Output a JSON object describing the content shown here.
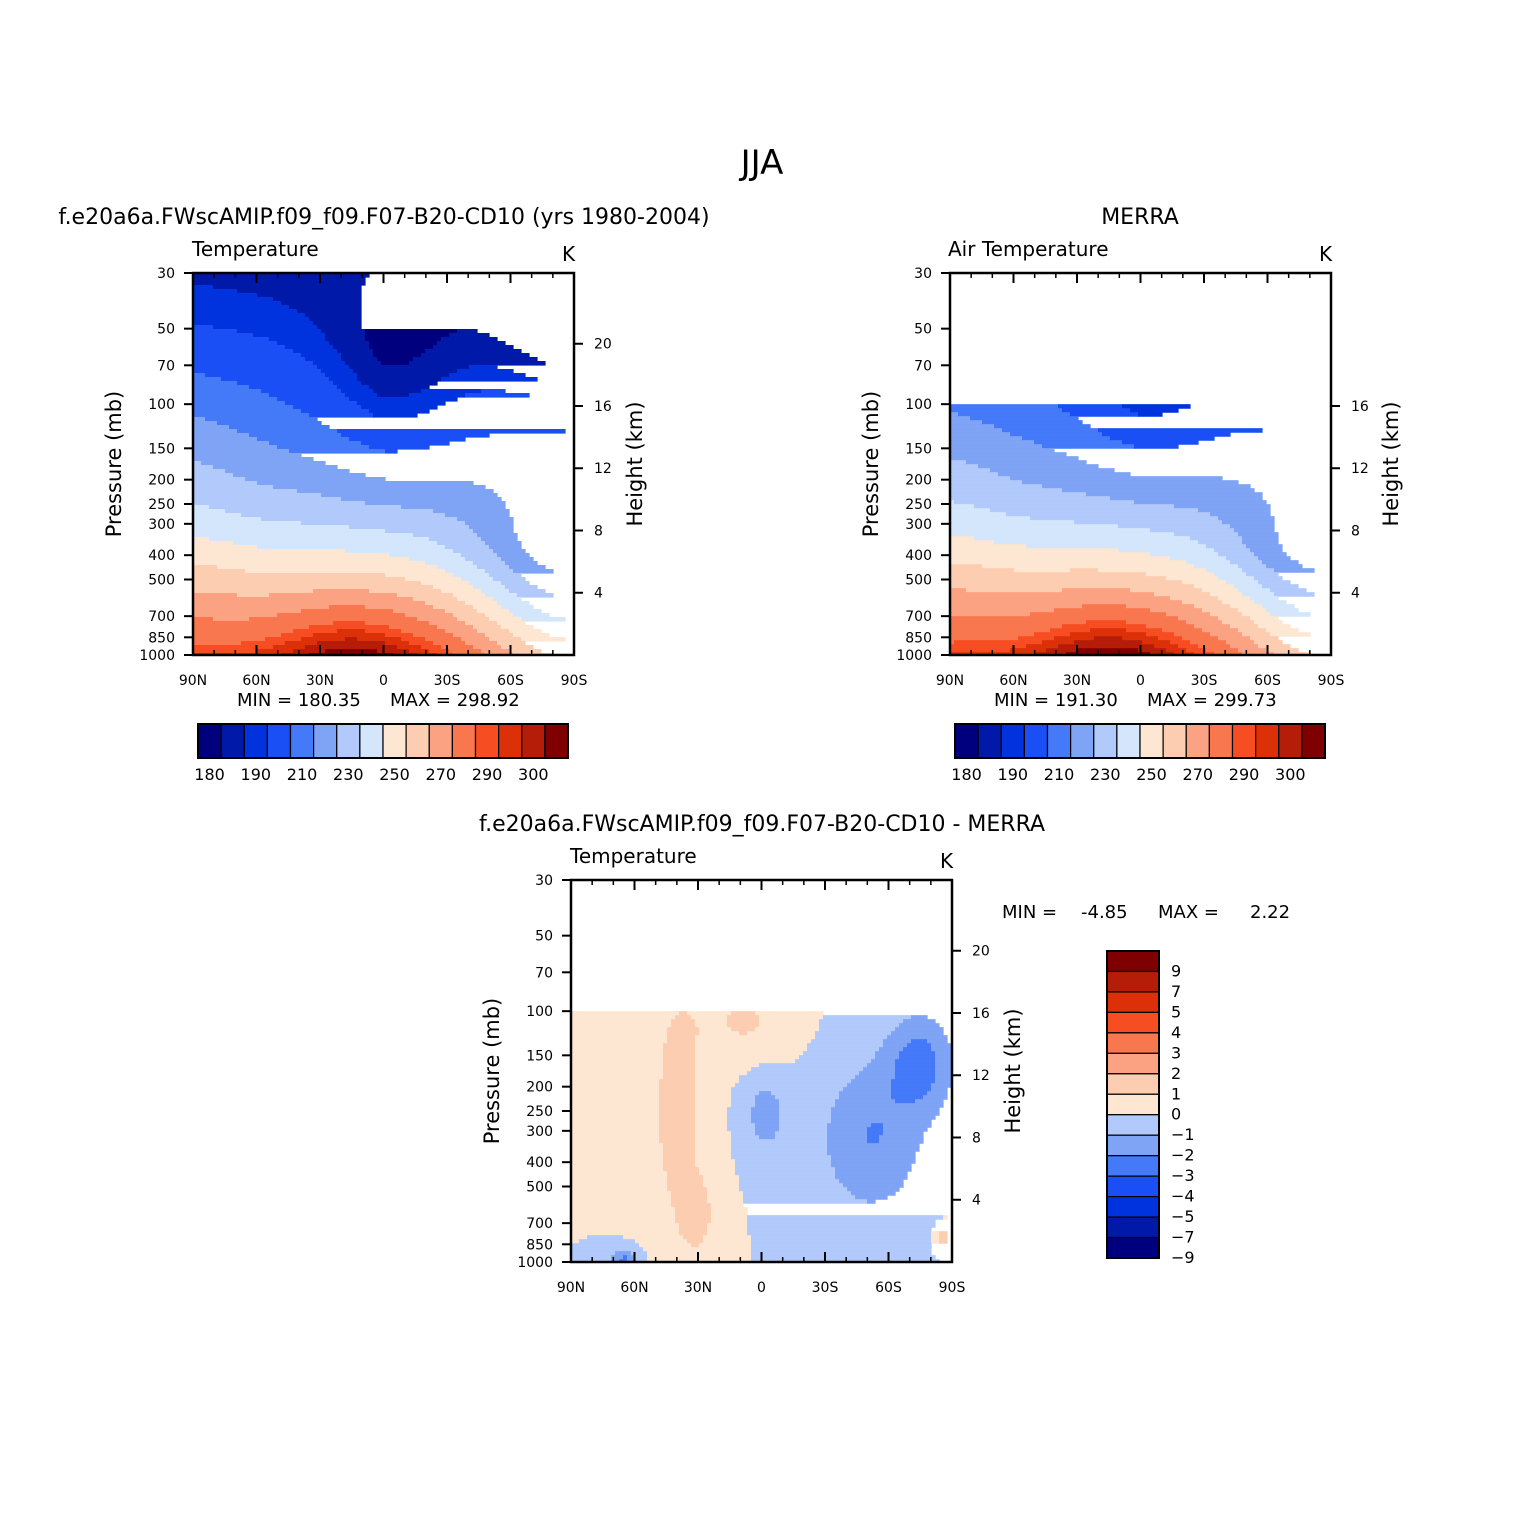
{
  "figure": {
    "title": "JJA"
  },
  "palette": {
    "cold_to_warm": [
      "#00007f",
      "#0019a8",
      "#0033dd",
      "#1a4ff5",
      "#4479f8",
      "#7fa3f5",
      "#b1c9fb",
      "#d4e6fb",
      "#fde7d2",
      "#fdcdb1",
      "#fba282",
      "#f9774f",
      "#f74d23",
      "#dc3008",
      "#b51d08",
      "#7f0000"
    ],
    "missing": "#ffffff"
  },
  "chart_data": [
    {
      "type": "contour",
      "id": "model",
      "title": "f.e20a6a.FWscAMIP.f09_f09.F07-B20-CD10 (yrs 1980-2004)",
      "subtitle_left": "Temperature",
      "subtitle_right": "K",
      "xlabel": "",
      "ylabel": "Pressure (mb)",
      "ylabel_right": "Height (km)",
      "x_ticks": [
        "90N",
        "60N",
        "30N",
        "0",
        "30S",
        "60S",
        "90S"
      ],
      "x_range": [
        90,
        -90
      ],
      "y_ticks": [
        30,
        50,
        70,
        100,
        150,
        200,
        250,
        300,
        400,
        500,
        700,
        850,
        1000
      ],
      "y_range": [
        30,
        1000
      ],
      "y_scale": "log",
      "height_ticks": [
        4,
        8,
        12,
        16,
        20
      ],
      "data_top_mb": 30,
      "min_label": "MIN = 180.35",
      "max_label": "MAX = 298.92",
      "min": 180.35,
      "max": 298.92,
      "levels": [
        180,
        185,
        190,
        200,
        210,
        220,
        230,
        240,
        250,
        260,
        270,
        280,
        285,
        290,
        295,
        300
      ],
      "colorbar_labels": [
        "180",
        "190",
        "210",
        "230",
        "250",
        "270",
        "290",
        "300"
      ]
    },
    {
      "type": "contour",
      "id": "obs",
      "title": "MERRA",
      "subtitle_left": "Air Temperature",
      "subtitle_right": "K",
      "xlabel": "",
      "ylabel": "Pressure (mb)",
      "ylabel_right": "Height (km)",
      "x_ticks": [
        "90N",
        "60N",
        "30N",
        "0",
        "30S",
        "60S",
        "90S"
      ],
      "x_range": [
        90,
        -90
      ],
      "y_ticks": [
        30,
        50,
        70,
        100,
        150,
        200,
        250,
        300,
        400,
        500,
        700,
        850,
        1000
      ],
      "y_range": [
        30,
        1000
      ],
      "y_scale": "log",
      "height_ticks": [
        4,
        8,
        12,
        16
      ],
      "data_top_mb": 100,
      "min_label": "MIN = 191.30",
      "max_label": "MAX = 299.73",
      "min": 191.3,
      "max": 299.73,
      "levels": [
        180,
        185,
        190,
        200,
        210,
        220,
        230,
        240,
        250,
        260,
        270,
        280,
        285,
        290,
        295,
        300
      ],
      "colorbar_labels": [
        "180",
        "190",
        "210",
        "230",
        "250",
        "270",
        "290",
        "300"
      ]
    },
    {
      "type": "contour",
      "id": "diff",
      "title": "f.e20a6a.FWscAMIP.f09_f09.F07-B20-CD10 - MERRA",
      "subtitle_left": "Temperature",
      "subtitle_right": "K",
      "xlabel": "",
      "ylabel": "Pressure (mb)",
      "ylabel_right": "Height (km)",
      "x_ticks": [
        "90N",
        "60N",
        "30N",
        "0",
        "30S",
        "60S",
        "90S"
      ],
      "x_range": [
        90,
        -90
      ],
      "y_ticks": [
        30,
        50,
        70,
        100,
        150,
        200,
        250,
        300,
        400,
        500,
        700,
        850,
        1000
      ],
      "y_range": [
        30,
        1000
      ],
      "y_scale": "log",
      "height_ticks": [
        4,
        8,
        12,
        16,
        20
      ],
      "data_top_mb": 100,
      "min_label": "MIN =",
      "min_value": "-4.85",
      "max_label": "MAX =",
      "max_value": "2.22",
      "min": -4.85,
      "max": 2.22,
      "levels": [
        -9,
        -7,
        -5,
        -4,
        -3,
        -2,
        -1,
        0,
        1,
        2,
        3,
        4,
        5,
        7,
        9
      ],
      "colorbar_labels": [
        "9",
        "7",
        "5",
        "4",
        "3",
        "2",
        "1",
        "0",
        "-1",
        "-2",
        "-3",
        "-4",
        "-5",
        "-7",
        "-9"
      ]
    }
  ]
}
